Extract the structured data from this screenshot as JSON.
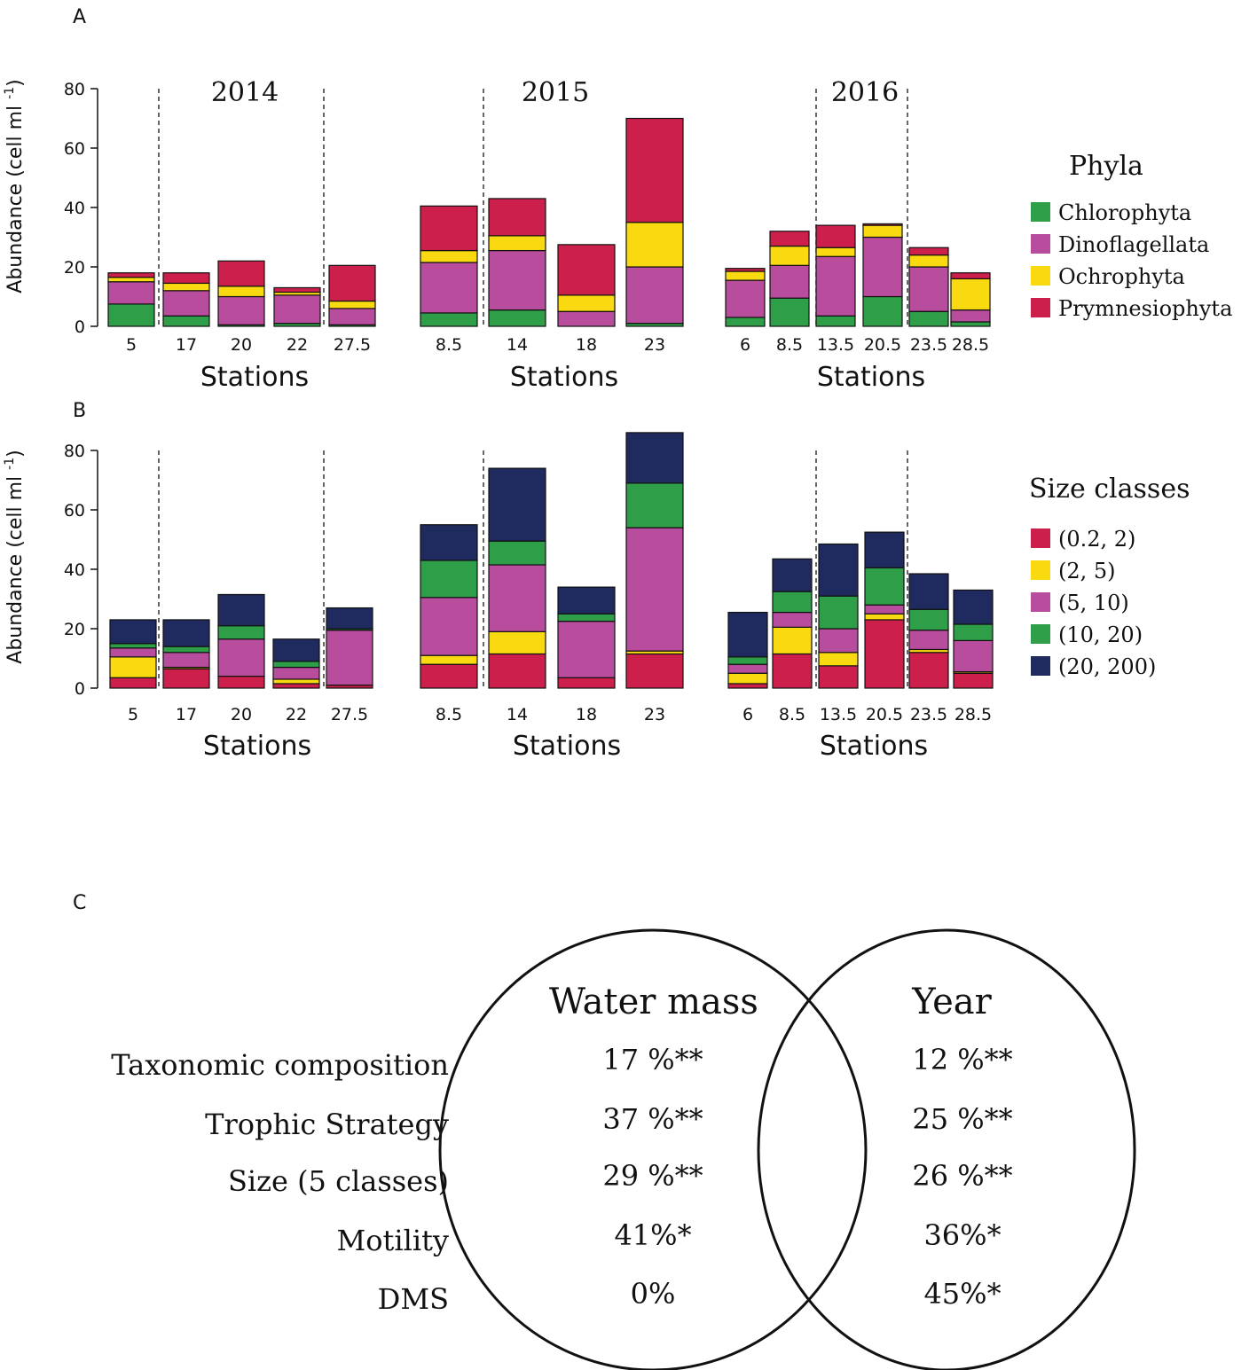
{
  "colors": {
    "Chlorophyta": "#2e9e48",
    "Dinoflagellata": "#b84c9d",
    "Ochrophyta": "#f9d90f",
    "Prymnesiophyta": "#cc1f4b",
    "s02_2": "#cc1f4b",
    "s2_5": "#f9d90f",
    "s5_10": "#b84c9d",
    "s10_20": "#2e9e48",
    "s20_200": "#1f2a5e"
  },
  "panel_labels": {
    "a": "A",
    "b": "B",
    "c": "C"
  },
  "years": [
    "2014",
    "2015",
    "2016"
  ],
  "chart_data": [
    {
      "type": "bar",
      "stacked": true,
      "title": "",
      "ylabel": "Abundance (cell ml",
      "ylabel_sup": "-1",
      "ylabel_close": ")",
      "ylim": [
        0,
        80
      ],
      "yticks": [
        "0",
        "20",
        "40",
        "60",
        "80"
      ],
      "xlabel": "Stations",
      "legend_title": "Phyla",
      "series": [
        {
          "name": "Chlorophyta",
          "key": "Chlorophyta"
        },
        {
          "name": "Dinoflagellata",
          "key": "Dinoflagellata"
        },
        {
          "name": "Ochrophyta",
          "key": "Ochrophyta"
        },
        {
          "name": "Prymnesiophyta",
          "key": "Prymnesiophyta"
        }
      ],
      "groups": [
        {
          "year": "2014",
          "stations": [
            "5",
            "17",
            "20",
            "22",
            "27.5"
          ],
          "values": [
            [
              7.5,
              7.5,
              1.5,
              1.5
            ],
            [
              3.5,
              8.5,
              2.5,
              3.5
            ],
            [
              0.5,
              9.5,
              3.5,
              8.5
            ],
            [
              1,
              9.5,
              1,
              1.5
            ],
            [
              0.5,
              5.5,
              2.5,
              12
            ]
          ]
        },
        {
          "year": "2015",
          "stations": [
            "8.5",
            "14",
            "18",
            "23"
          ],
          "values": [
            [
              4.5,
              17,
              4,
              15
            ],
            [
              5.5,
              20,
              5,
              12.5
            ],
            [
              0,
              5,
              5.5,
              17
            ],
            [
              1,
              19,
              15,
              35
            ]
          ]
        },
        {
          "year": "2016",
          "stations": [
            "6",
            "8.5",
            "13.5",
            "20.5",
            "23.5",
            "28.5"
          ],
          "values": [
            [
              3,
              12.5,
              3,
              1
            ],
            [
              9.5,
              11,
              6.5,
              5
            ],
            [
              3.5,
              20,
              3,
              7.5
            ],
            [
              10,
              20,
              4,
              0.5
            ],
            [
              5,
              15,
              4,
              2.5
            ],
            [
              1.5,
              4,
              10.5,
              2
            ]
          ]
        }
      ]
    },
    {
      "type": "bar",
      "stacked": true,
      "title": "",
      "ylabel": "Abundance (cell ml",
      "ylabel_sup": "-1",
      "ylabel_close": ")",
      "ylim": [
        0,
        80
      ],
      "yticks": [
        "0",
        "20",
        "40",
        "60",
        "80"
      ],
      "xlabel": "Stations",
      "legend_title": "Size  classes",
      "series": [
        {
          "name": "(0.2, 2)",
          "key": "s02_2"
        },
        {
          "name": "(2, 5)",
          "key": "s2_5"
        },
        {
          "name": "(5, 10)",
          "key": "s5_10"
        },
        {
          "name": "(10, 20)",
          "key": "s10_20"
        },
        {
          "name": "(20, 200)",
          "key": "s20_200"
        }
      ],
      "groups": [
        {
          "year": "2014",
          "stations": [
            "5",
            "17",
            "20",
            "22",
            "27.5"
          ],
          "values": [
            [
              3.5,
              7,
              3,
              1.5,
              8
            ],
            [
              6.5,
              0.5,
              5,
              2,
              9
            ],
            [
              4,
              0,
              12.5,
              4.5,
              10.5
            ],
            [
              1.5,
              1.5,
              4,
              2,
              7.5
            ],
            [
              1,
              0,
              18.5,
              0.5,
              7
            ]
          ]
        },
        {
          "year": "2015",
          "stations": [
            "8.5",
            "14",
            "18",
            "23"
          ],
          "values": [
            [
              8,
              3,
              19.5,
              12.5,
              12
            ],
            [
              11.5,
              7.5,
              22.5,
              8,
              24.5
            ],
            [
              3.5,
              0,
              19,
              2.5,
              9
            ],
            [
              11.5,
              1,
              41.5,
              15,
              17
            ]
          ]
        },
        {
          "year": "2016",
          "stations": [
            "6",
            "8.5",
            "13.5",
            "20.5",
            "23.5",
            "28.5"
          ],
          "values": [
            [
              1.5,
              3.5,
              3,
              2.5,
              15
            ],
            [
              11.5,
              9,
              5,
              7,
              11
            ],
            [
              7.5,
              4.5,
              8,
              11,
              17.5
            ],
            [
              23,
              2,
              3,
              12.5,
              12
            ],
            [
              12,
              1,
              6.5,
              7,
              12
            ],
            [
              5,
              0.5,
              10.5,
              5.5,
              11.5
            ]
          ]
        }
      ]
    }
  ],
  "venn": {
    "left_header": "Water mass",
    "right_header": "Year",
    "rows": [
      {
        "label": "Taxonomic composition",
        "left": "17 %**",
        "right": "12 %**"
      },
      {
        "label": "Trophic Strategy",
        "left": "37 %**",
        "right": "25 %**"
      },
      {
        "label": "Size (5 classes)",
        "left": "29 %**",
        "right": "26 %**"
      },
      {
        "label": "Motility",
        "left": "41%*",
        "right": "36%*"
      },
      {
        "label": "DMS",
        "left": "0%",
        "right": "45%*"
      }
    ]
  }
}
